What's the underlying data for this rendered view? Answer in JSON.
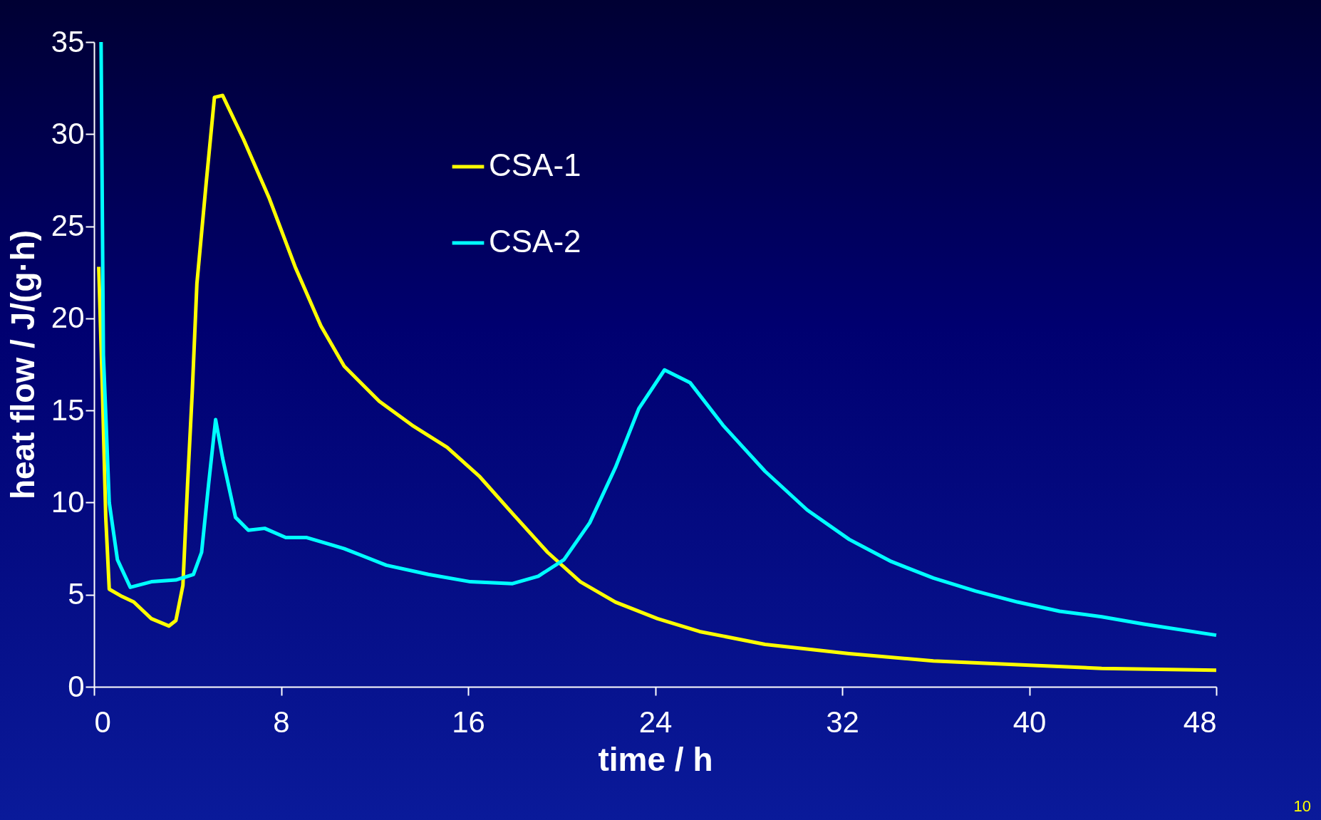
{
  "chart_data": {
    "type": "line",
    "xlabel": "time / h",
    "ylabel": "heat flow / J/(g·h)",
    "xlim": [
      0,
      48
    ],
    "xticks": [
      0,
      8,
      16,
      24,
      32,
      40,
      48
    ],
    "ylim": [
      0,
      35
    ],
    "yticks": [
      0,
      5,
      10,
      15,
      20,
      25,
      30,
      35
    ],
    "grid": false,
    "legend": "top",
    "marker": "none",
    "line_style": "solid",
    "annotations": [
      "10"
    ],
    "series": [
      {
        "name": "CSA-1",
        "color": "#ffff00",
        "x": [
          0.2,
          0.36,
          0.5,
          0.65,
          1.2,
          1.7,
          2.45,
          3.2,
          3.5,
          3.8,
          4.0,
          4.2,
          4.4,
          4.8,
          5.15,
          5.5,
          6.4,
          7.5,
          8.6,
          9.7,
          10.7,
          12.2,
          13.6,
          15.1,
          16.5,
          17.9,
          19.4,
          20.8,
          22.3,
          24.1,
          25.9,
          28.7,
          32.3,
          35.9,
          39.5,
          43.1,
          48
        ],
        "values": [
          22.8,
          16,
          9.2,
          5.3,
          4.9,
          4.6,
          3.7,
          3.3,
          3.6,
          5.5,
          11,
          16,
          21.9,
          27.4,
          32,
          32.1,
          29.7,
          26.5,
          22.8,
          19.6,
          17.4,
          15.5,
          14.2,
          13,
          11.4,
          9.4,
          7.3,
          5.7,
          4.6,
          3.7,
          3.0,
          2.3,
          1.8,
          1.4,
          1.2,
          1.0,
          0.9
        ]
      },
      {
        "name": "CSA-2",
        "color": "#00ffff",
        "x": [
          0.3,
          0.4,
          0.65,
          1.0,
          1.55,
          2.45,
          3.5,
          4.25,
          4.6,
          4.9,
          5.2,
          5.5,
          6.05,
          6.6,
          7.3,
          8.2,
          9.1,
          10.7,
          12.5,
          14.3,
          16.1,
          17.9,
          19,
          20.1,
          21.2,
          22.3,
          23.3,
          24.4,
          25.5,
          26.9,
          28.7,
          30.5,
          32.3,
          34.1,
          35.9,
          37.7,
          39.5,
          41.3,
          43.1,
          44.9,
          48
        ],
        "values": [
          35,
          18,
          10,
          6.9,
          5.4,
          5.7,
          5.8,
          6.1,
          7.3,
          11,
          14.5,
          12.4,
          9.2,
          8.5,
          8.6,
          8.1,
          8.1,
          7.5,
          6.6,
          6.1,
          5.7,
          5.6,
          6.0,
          6.9,
          8.9,
          11.9,
          15.1,
          17.2,
          16.5,
          14.2,
          11.7,
          9.6,
          8.0,
          6.8,
          5.9,
          5.2,
          4.6,
          4.1,
          3.8,
          3.4,
          2.8
        ]
      }
    ]
  }
}
